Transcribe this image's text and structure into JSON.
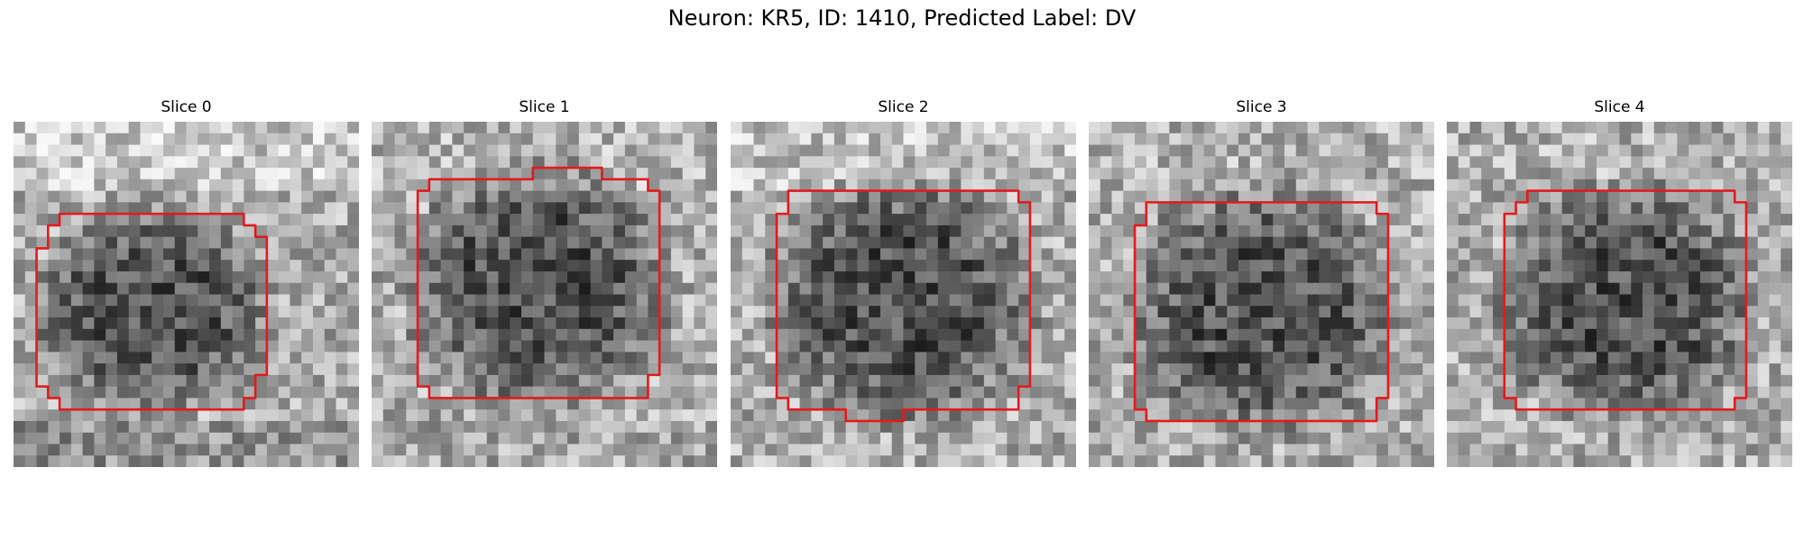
{
  "figure": {
    "title": "Neuron: KR5, ID: 1410, Predicted Label: DV"
  },
  "contour_color": "#e41a1c",
  "panels": [
    {
      "title": "Slice 0",
      "seed": 11,
      "dark": [
        0.4,
        0.55
      ],
      "rx": 0.32,
      "ry": 0.28,
      "bright_top": 0.7,
      "dark_bottom": 0.5
    },
    {
      "title": "Slice 1",
      "seed": 23,
      "dark": [
        0.48,
        0.48
      ],
      "rx": 0.35,
      "ry": 0.33,
      "bright_top": 0.2,
      "dark_bottom": 0.1
    },
    {
      "title": "Slice 2",
      "seed": 37,
      "dark": [
        0.5,
        0.52
      ],
      "rx": 0.36,
      "ry": 0.33,
      "bright_top": 0.5,
      "dark_bottom": 0.0
    },
    {
      "title": "Slice 3",
      "seed": 53,
      "dark": [
        0.5,
        0.55
      ],
      "rx": 0.36,
      "ry": 0.33,
      "bright_top": 0.1,
      "dark_bottom": 0.0
    },
    {
      "title": "Slice 4",
      "seed": 71,
      "dark": [
        0.52,
        0.52
      ],
      "rx": 0.35,
      "ry": 0.32,
      "bright_top": 0.1,
      "dark_bottom": 0.0
    }
  ]
}
